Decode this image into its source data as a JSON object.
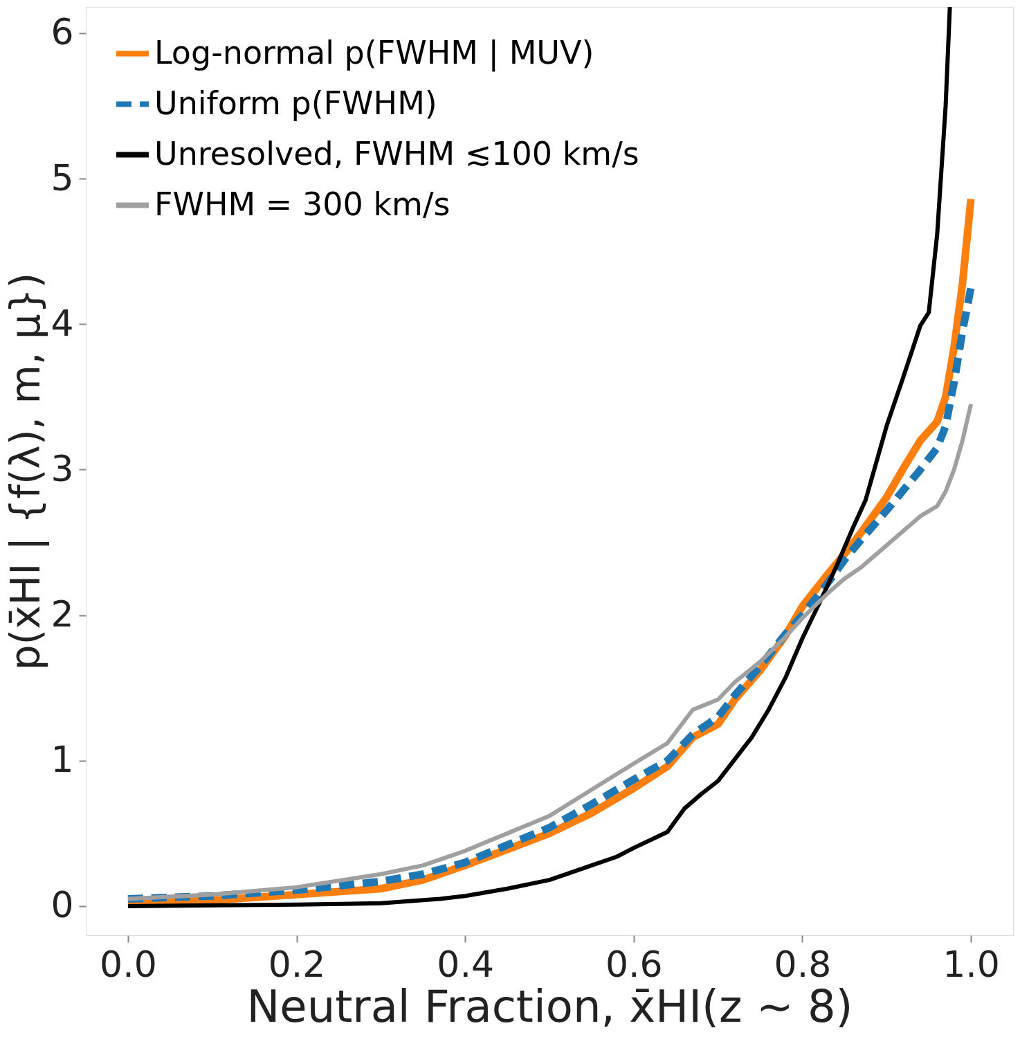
{
  "chart_data": {
    "type": "line",
    "xlabel": "Neutral Fraction, x̄HI(z ∼ 8)",
    "ylabel": "p(x̄HI | {f(λ), m, μ})",
    "xlim": [
      -0.05,
      1.05
    ],
    "ylim": [
      -0.2,
      6.18
    ],
    "xticks": [
      {
        "value": 0,
        "label": "0.0"
      },
      0.2,
      0.4,
      0.6,
      0.8,
      {
        "value": 1,
        "label": "1.0"
      }
    ],
    "yticks": [
      0,
      1,
      2,
      3,
      4,
      5,
      6
    ],
    "grid": false,
    "legend": "top left",
    "marker": "none",
    "series": [
      {
        "name": "Log-normal p(FWHM | MUV)",
        "color": "#ff7f0e",
        "line_style": "solid",
        "x": [
          0.0,
          0.1,
          0.2,
          0.3,
          0.35,
          0.4,
          0.45,
          0.5,
          0.55,
          0.6,
          0.64,
          0.67,
          0.7,
          0.72,
          0.75,
          0.78,
          0.8,
          0.83,
          0.85,
          0.87,
          0.9,
          0.92,
          0.94,
          0.96,
          0.97,
          0.98,
          0.99,
          1.0
        ],
        "values": [
          0.02,
          0.04,
          0.08,
          0.12,
          0.18,
          0.28,
          0.39,
          0.5,
          0.64,
          0.81,
          0.96,
          1.16,
          1.25,
          1.42,
          1.62,
          1.86,
          2.06,
          2.28,
          2.42,
          2.57,
          2.81,
          3.01,
          3.2,
          3.33,
          3.5,
          3.84,
          4.28,
          4.86
        ]
      },
      {
        "name": "Uniform p(FWHM)",
        "color": "#1f77b4",
        "line_style": "dashed",
        "x": [
          0.0,
          0.1,
          0.2,
          0.3,
          0.35,
          0.4,
          0.45,
          0.5,
          0.55,
          0.6,
          0.64,
          0.67,
          0.7,
          0.72,
          0.75,
          0.78,
          0.8,
          0.83,
          0.85,
          0.87,
          0.9,
          0.92,
          0.94,
          0.96,
          0.97,
          0.98,
          0.99,
          1.0
        ],
        "values": [
          0.05,
          0.07,
          0.11,
          0.17,
          0.22,
          0.3,
          0.42,
          0.54,
          0.7,
          0.87,
          1.0,
          1.18,
          1.3,
          1.45,
          1.65,
          1.87,
          2.0,
          2.22,
          2.38,
          2.52,
          2.72,
          2.86,
          3.0,
          3.15,
          3.3,
          3.6,
          3.95,
          4.25
        ]
      },
      {
        "name": "Unresolved, FWHM ≲100 km/s",
        "color": "#000000",
        "line_style": "solid",
        "x": [
          0.0,
          0.2,
          0.3,
          0.37,
          0.4,
          0.45,
          0.5,
          0.55,
          0.58,
          0.6,
          0.64,
          0.66,
          0.68,
          0.7,
          0.72,
          0.74,
          0.76,
          0.78,
          0.8,
          0.82,
          0.84,
          0.86,
          0.875,
          0.9,
          0.92,
          0.94,
          0.95,
          0.96,
          0.97,
          0.975
        ],
        "values": [
          0.0,
          0.01,
          0.02,
          0.05,
          0.07,
          0.12,
          0.18,
          0.28,
          0.34,
          0.4,
          0.51,
          0.67,
          0.77,
          0.86,
          1.01,
          1.16,
          1.35,
          1.57,
          1.84,
          2.08,
          2.33,
          2.6,
          2.79,
          3.3,
          3.64,
          3.99,
          4.08,
          4.62,
          5.5,
          6.18
        ]
      },
      {
        "name": "FWHM = 300 km/s",
        "color": "#a0a0a0",
        "line_style": "solid",
        "x": [
          0.0,
          0.1,
          0.2,
          0.3,
          0.35,
          0.4,
          0.45,
          0.5,
          0.55,
          0.6,
          0.64,
          0.67,
          0.7,
          0.72,
          0.75,
          0.78,
          0.8,
          0.83,
          0.85,
          0.87,
          0.9,
          0.92,
          0.94,
          0.96,
          0.97,
          0.98,
          0.99,
          1.0
        ],
        "values": [
          0.05,
          0.08,
          0.13,
          0.22,
          0.28,
          0.38,
          0.5,
          0.62,
          0.8,
          0.98,
          1.12,
          1.35,
          1.42,
          1.54,
          1.68,
          1.85,
          1.98,
          2.15,
          2.25,
          2.33,
          2.48,
          2.58,
          2.68,
          2.75,
          2.85,
          3.0,
          3.2,
          3.45
        ]
      }
    ]
  }
}
